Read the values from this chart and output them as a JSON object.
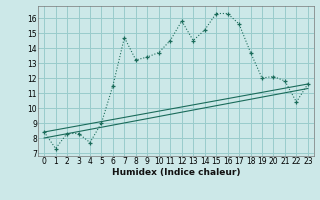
{
  "xlabel": "Humidex (Indice chaleur)",
  "bg_color": "#cce8e8",
  "grid_color": "#99cccc",
  "line_color": "#1a6b5a",
  "xlim": [
    -0.5,
    23.5
  ],
  "ylim": [
    6.8,
    16.8
  ],
  "yticks": [
    7,
    8,
    9,
    10,
    11,
    12,
    13,
    14,
    15,
    16
  ],
  "xticks": [
    0,
    1,
    2,
    3,
    4,
    5,
    6,
    7,
    8,
    9,
    10,
    11,
    12,
    13,
    14,
    15,
    16,
    17,
    18,
    19,
    20,
    21,
    22,
    23
  ],
  "main_series_x": [
    0,
    1,
    2,
    3,
    4,
    5,
    6,
    7,
    8,
    9,
    10,
    11,
    12,
    13,
    14,
    15,
    16,
    17,
    18,
    19,
    20,
    21,
    22,
    23
  ],
  "main_series_y": [
    8.4,
    7.3,
    8.3,
    8.3,
    7.7,
    9.0,
    11.5,
    14.7,
    13.2,
    13.4,
    13.7,
    14.5,
    15.8,
    14.5,
    15.2,
    16.3,
    16.3,
    15.6,
    13.7,
    12.0,
    12.1,
    11.8,
    10.4,
    11.6
  ],
  "line1_x": [
    0,
    23
  ],
  "line1_y": [
    8.4,
    11.6
  ],
  "line2_x": [
    0,
    23
  ],
  "line2_y": [
    8.0,
    11.3
  ],
  "xlabel_fontsize": 6.5,
  "tick_fontsize": 5.5
}
